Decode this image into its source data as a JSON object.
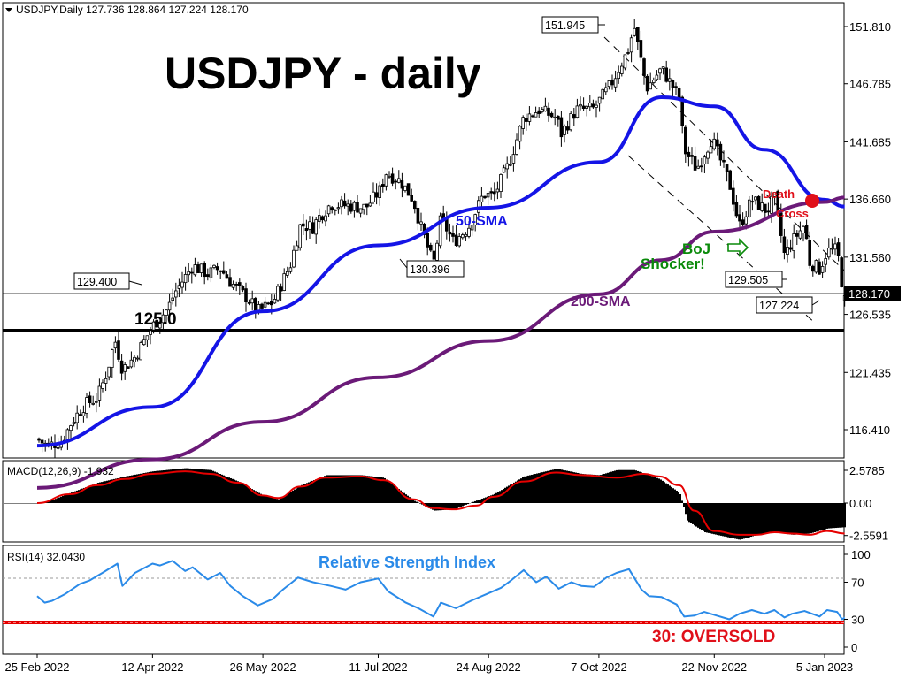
{
  "window": {
    "symbol_header": "USDJPY,Daily  127.736 128.864 127.224 128.170"
  },
  "colors": {
    "bull_candle": "#ffffff",
    "bear_candle": "#000000",
    "sma50": "#1414e6",
    "sma200": "#6b1a78",
    "macd_signal": "#e60000",
    "rsi_line": "#2a8ae8",
    "rsi_title": "#2a8ae8",
    "annotation_red": "#e0101a",
    "annotation_green": "#0a8a0a",
    "oversold_line": "#e60000"
  },
  "annotations": {
    "title": "USDJPY - daily",
    "label_125": "125.0",
    "sma50_label": "50-SMA",
    "sma200_label": "200-SMA",
    "death_cross_1": "Death",
    "death_cross_2": "Cross",
    "boj_1": "BoJ",
    "boj_2": "Shocker!",
    "rsi_title": "Relative Strength Index",
    "oversold": "30: OVERSOLD",
    "callout_151945": "151.945",
    "callout_129400": "129.400",
    "callout_130396": "130.396",
    "callout_129505": "129.505",
    "callout_127224": "127.224",
    "current_price": "128.170"
  },
  "chart_data": [
    {
      "type": "candlestick",
      "title": "USDJPY,Daily",
      "ohlc_last": {
        "open": 127.736,
        "high": 128.864,
        "low": 127.224,
        "close": 128.17
      },
      "y_ticks": [
        "151.810",
        "146.785",
        "141.685",
        "136.660",
        "131.560",
        "126.535",
        "121.435",
        "116.410"
      ],
      "ylim": [
        112.8,
        154.0
      ],
      "x_ticks": [
        "25 Feb 2022",
        "12 Apr 2022",
        "26 May 2022",
        "11 Jul 2022",
        "24 Aug 2022",
        "7 Oct 2022",
        "22 Nov 2022",
        "5 Jan 2023"
      ],
      "close_path": [
        [
          "25 Feb 2022",
          115.6
        ],
        [
          "1 Mar 2022",
          115.0
        ],
        [
          "7 Mar 2022",
          115.4
        ],
        [
          "11 Mar 2022",
          117.2
        ],
        [
          "16 Mar 2022",
          118.6
        ],
        [
          "21 Mar 2022",
          119.2
        ],
        [
          "25 Mar 2022",
          121.6
        ],
        [
          "28 Mar 2022",
          124.3
        ],
        [
          "31 Mar 2022",
          121.7
        ],
        [
          "5 Apr 2022",
          122.8
        ],
        [
          "12 Apr 2022",
          125.5
        ],
        [
          "18 Apr 2022",
          127.0
        ],
        [
          "21 Apr 2022",
          128.5
        ],
        [
          "28 Apr 2022",
          130.8
        ],
        [
          "4 May 2022",
          130.1
        ],
        [
          "9 May 2022",
          130.6
        ],
        [
          "13 May 2022",
          129.4
        ],
        [
          "20 May 2022",
          127.9
        ],
        [
          "24 May 2022",
          126.8
        ],
        [
          "30 May 2022",
          127.6
        ],
        [
          "6 Jun 2022",
          130.9
        ],
        [
          "10 Jun 2022",
          134.4
        ],
        [
          "15 Jun 2022",
          134.2
        ],
        [
          "17 Jun 2022",
          135.0
        ],
        [
          "22 Jun 2022",
          136.2
        ],
        [
          "28 Jun 2022",
          136.1
        ],
        [
          "6 Jul 2022",
          135.9
        ],
        [
          "12 Jul 2022",
          137.5
        ],
        [
          "14 Jul 2022",
          139.0
        ],
        [
          "20 Jul 2022",
          138.2
        ],
        [
          "25 Jul 2022",
          136.6
        ],
        [
          "28 Jul 2022",
          134.2
        ],
        [
          "2 Aug 2022",
          130.9
        ],
        [
          "5 Aug 2022",
          135.0
        ],
        [
          "10 Aug 2022",
          132.9
        ],
        [
          "16 Aug 2022",
          134.2
        ],
        [
          "22 Aug 2022",
          137.1
        ],
        [
          "26 Aug 2022",
          136.9
        ],
        [
          "1 Sep 2022",
          139.7
        ],
        [
          "7 Sep 2022",
          143.8
        ],
        [
          "13 Sep 2022",
          144.5
        ],
        [
          "20 Sep 2022",
          143.8
        ],
        [
          "22 Sep 2022",
          142.4
        ],
        [
          "28 Sep 2022",
          144.5
        ],
        [
          "5 Oct 2022",
          144.6
        ],
        [
          "12 Oct 2022",
          146.8
        ],
        [
          "19 Oct 2022",
          149.9
        ],
        [
          "21 Oct 2022",
          151.9
        ],
        [
          "26 Oct 2022",
          146.4
        ],
        [
          "1 Nov 2022",
          148.1
        ],
        [
          "8 Nov 2022",
          145.6
        ],
        [
          "10 Nov 2022",
          141.0
        ],
        [
          "15 Nov 2022",
          139.3
        ],
        [
          "21 Nov 2022",
          142.0
        ],
        [
          "28 Nov 2022",
          138.1
        ],
        [
          "2 Dec 2022",
          134.3
        ],
        [
          "7 Dec 2022",
          136.6
        ],
        [
          "13 Dec 2022",
          135.6
        ],
        [
          "16 Dec 2022",
          136.8
        ],
        [
          "20 Dec 2022",
          131.7
        ],
        [
          "23 Dec 2022",
          132.9
        ],
        [
          "28 Dec 2022",
          134.4
        ],
        [
          "30 Dec 2022",
          131.1
        ],
        [
          "3 Jan 2023",
          130.5
        ],
        [
          "6 Jan 2023",
          132.1
        ],
        [
          "10 Jan 2023",
          132.2
        ],
        [
          "12 Jan 2023",
          129.1
        ],
        [
          "13 Jan 2023",
          128.17
        ]
      ],
      "series": [
        {
          "name": "50-SMA",
          "values": [
            [
              "25 Feb 2022",
              115.0
            ],
            [
              "12 Apr 2022",
              118.4
            ],
            [
              "26 May 2022",
              126.8
            ],
            [
              "11 Jul 2022",
              132.6
            ],
            [
              "24 Aug 2022",
              135.9
            ],
            [
              "7 Oct 2022",
              139.9
            ],
            [
              "1 Nov 2022",
              145.6
            ],
            [
              "22 Nov 2022",
              144.8
            ],
            [
              "12 Dec 2022",
              141.0
            ],
            [
              "5 Jan 2023",
              136.6
            ],
            [
              "13 Jan 2023",
              136.0
            ]
          ]
        },
        {
          "name": "200-SMA",
          "values": [
            [
              "25 Feb 2022",
              111.3
            ],
            [
              "12 Apr 2022",
              113.8
            ],
            [
              "26 May 2022",
              117.1
            ],
            [
              "11 Jul 2022",
              121.0
            ],
            [
              "24 Aug 2022",
              124.2
            ],
            [
              "7 Oct 2022",
              128.3
            ],
            [
              "1 Nov 2022",
              131.3
            ],
            [
              "22 Nov 2022",
              133.8
            ],
            [
              "5 Jan 2023",
              136.4
            ],
            [
              "13 Jan 2023",
              136.8
            ]
          ]
        }
      ]
    },
    {
      "type": "histogram",
      "title": "MACD(12,26,9) -1.932",
      "y_ticks": [
        "2.5785",
        "0.00",
        "-2.5591"
      ],
      "ylim": [
        -3.3,
        3.0
      ],
      "histogram": [
        [
          "25 Feb 2022",
          0.0
        ],
        [
          "1 Mar 2022",
          0.1
        ],
        [
          "10 Mar 2022",
          0.8
        ],
        [
          "21 Mar 2022",
          1.6
        ],
        [
          "1 Apr 2022",
          2.1
        ],
        [
          "12 Apr 2022",
          2.5
        ],
        [
          "25 Apr 2022",
          2.75
        ],
        [
          "5 May 2022",
          2.6
        ],
        [
          "16 May 2022",
          1.7
        ],
        [
          "26 May 2022",
          0.6
        ],
        [
          "1 Jun 2022",
          0.3
        ],
        [
          "10 Jun 2022",
          1.4
        ],
        [
          "20 Jun 2022",
          2.2
        ],
        [
          "4 Jul 2022",
          2.2
        ],
        [
          "13 Jul 2022",
          2.0
        ],
        [
          "25 Jul 2022",
          0.2
        ],
        [
          "2 Aug 2022",
          -0.6
        ],
        [
          "10 Aug 2022",
          -0.5
        ],
        [
          "19 Aug 2022",
          0.2
        ],
        [
          "26 Aug 2022",
          0.7
        ],
        [
          "7 Sep 2022",
          2.1
        ],
        [
          "20 Sep 2022",
          2.7
        ],
        [
          "30 Sep 2022",
          2.3
        ],
        [
          "7 Oct 2022",
          2.2
        ],
        [
          "14 Oct 2022",
          2.6
        ],
        [
          "21 Oct 2022",
          2.6
        ],
        [
          "31 Oct 2022",
          1.9
        ],
        [
          "8 Nov 2022",
          0.8
        ],
        [
          "11 Nov 2022",
          -1.4
        ],
        [
          "18 Nov 2022",
          -2.3
        ],
        [
          "25 Nov 2022",
          -2.6
        ],
        [
          "2 Dec 2022",
          -2.9
        ],
        [
          "9 Dec 2022",
          -2.5
        ],
        [
          "16 Dec 2022",
          -2.3
        ],
        [
          "23 Dec 2022",
          -2.5
        ],
        [
          "30 Dec 2022",
          -2.4
        ],
        [
          "6 Jan 2023",
          -2.0
        ],
        [
          "13 Jan 2023",
          -1.9
        ]
      ],
      "signal": [
        [
          "25 Feb 2022",
          0.0
        ],
        [
          "10 Mar 2022",
          0.7
        ],
        [
          "21 Mar 2022",
          1.4
        ],
        [
          "1 Apr 2022",
          1.9
        ],
        [
          "12 Apr 2022",
          2.3
        ],
        [
          "25 Apr 2022",
          2.5
        ],
        [
          "5 May 2022",
          2.3
        ],
        [
          "16 May 2022",
          1.6
        ],
        [
          "26 May 2022",
          0.6
        ],
        [
          "1 Jun 2022",
          0.4
        ],
        [
          "10 Jun 2022",
          1.3
        ],
        [
          "20 Jun 2022",
          2.0
        ],
        [
          "4 Jul 2022",
          2.1
        ],
        [
          "13 Jul 2022",
          1.8
        ],
        [
          "25 Jul 2022",
          0.3
        ],
        [
          "2 Aug 2022",
          -0.4
        ],
        [
          "10 Aug 2022",
          -0.5
        ],
        [
          "19 Aug 2022",
          -0.2
        ],
        [
          "26 Aug 2022",
          0.5
        ],
        [
          "7 Sep 2022",
          1.7
        ],
        [
          "20 Sep 2022",
          2.4
        ],
        [
          "30 Sep 2022",
          2.2
        ],
        [
          "14 Oct 2022",
          2.0
        ],
        [
          "25 Oct 2022",
          2.3
        ],
        [
          "31 Oct 2022",
          2.1
        ],
        [
          "8 Nov 2022",
          1.4
        ],
        [
          "14 Nov 2022",
          -0.6
        ],
        [
          "22 Nov 2022",
          -2.2
        ],
        [
          "2 Dec 2022",
          -2.5
        ],
        [
          "9 Dec 2022",
          -2.5
        ],
        [
          "16 Dec 2022",
          -2.3
        ],
        [
          "23 Dec 2022",
          -2.4
        ],
        [
          "30 Dec 2022",
          -2.5
        ],
        [
          "6 Jan 2023",
          -2.2
        ],
        [
          "13 Jan 2023",
          -2.4
        ]
      ]
    },
    {
      "type": "line",
      "title": "RSI(14) 32.0430",
      "y_ticks": [
        "100",
        "70",
        "30",
        "0"
      ],
      "ylim": [
        0,
        100
      ],
      "levels": [
        70,
        30
      ],
      "series": [
        {
          "name": "RSI(14)",
          "values": [
            [
              "25 Feb 2022",
              55
            ],
            [
              "28 Feb 2022",
              48
            ],
            [
              "3 Mar 2022",
              50
            ],
            [
              "8 Mar 2022",
              57
            ],
            [
              "14 Mar 2022",
              68
            ],
            [
              "18 Mar 2022",
              72
            ],
            [
              "23 Mar 2022",
              80
            ],
            [
              "29 Mar 2022",
              90
            ],
            [
              "31 Mar 2022",
              66
            ],
            [
              "5 Apr 2022",
              80
            ],
            [
              "12 Apr 2022",
              90
            ],
            [
              "15 Apr 2022",
              88
            ],
            [
              "20 Apr 2022",
              93
            ],
            [
              "25 Apr 2022",
              82
            ],
            [
              "28 Apr 2022",
              86
            ],
            [
              "4 May 2022",
              73
            ],
            [
              "9 May 2022",
              80
            ],
            [
              "13 May 2022",
              66
            ],
            [
              "18 May 2022",
              55
            ],
            [
              "24 May 2022",
              45
            ],
            [
              "30 May 2022",
              52
            ],
            [
              "3 Jun 2022",
              62
            ],
            [
              "9 Jun 2022",
              75
            ],
            [
              "15 Jun 2022",
              70
            ],
            [
              "22 Jun 2022",
              66
            ],
            [
              "28 Jun 2022",
              62
            ],
            [
              "4 Jul 2022",
              70
            ],
            [
              "11 Jul 2022",
              74
            ],
            [
              "15 Jul 2022",
              60
            ],
            [
              "22 Jul 2022",
              48
            ],
            [
              "27 Jul 2022",
              42
            ],
            [
              "2 Aug 2022",
              33
            ],
            [
              "5 Aug 2022",
              48
            ],
            [
              "11 Aug 2022",
              42
            ],
            [
              "17 Aug 2022",
              50
            ],
            [
              "23 Aug 2022",
              57
            ],
            [
              "29 Aug 2022",
              64
            ],
            [
              "2 Sep 2022",
              72
            ],
            [
              "7 Sep 2022",
              83
            ],
            [
              "12 Sep 2022",
              70
            ],
            [
              "16 Sep 2022",
              76
            ],
            [
              "21 Sep 2022",
              63
            ],
            [
              "26 Sep 2022",
              70
            ],
            [
              "30 Sep 2022",
              66
            ],
            [
              "5 Oct 2022",
              65
            ],
            [
              "10 Oct 2022",
              75
            ],
            [
              "14 Oct 2022",
              80
            ],
            [
              "19 Oct 2022",
              84
            ],
            [
              "24 Oct 2022",
              62
            ],
            [
              "27 Oct 2022",
              55
            ],
            [
              "1 Nov 2022",
              54
            ],
            [
              "7 Nov 2022",
              46
            ],
            [
              "10 Nov 2022",
              33
            ],
            [
              "14 Nov 2022",
              34
            ],
            [
              "18 Nov 2022",
              38
            ],
            [
              "23 Nov 2022",
              34
            ],
            [
              "28 Nov 2022",
              30
            ],
            [
              "2 Dec 2022",
              36
            ],
            [
              "7 Dec 2022",
              40
            ],
            [
              "12 Dec 2022",
              36
            ],
            [
              "16 Dec 2022",
              40
            ],
            [
              "20 Dec 2022",
              32
            ],
            [
              "23 Dec 2022",
              36
            ],
            [
              "28 Dec 2022",
              39
            ],
            [
              "3 Jan 2023",
              33
            ],
            [
              "6 Jan 2023",
              40
            ],
            [
              "10 Jan 2023",
              38
            ],
            [
              "12 Jan 2023",
              30
            ],
            [
              "13 Jan 2023",
              32
            ]
          ]
        }
      ]
    }
  ]
}
